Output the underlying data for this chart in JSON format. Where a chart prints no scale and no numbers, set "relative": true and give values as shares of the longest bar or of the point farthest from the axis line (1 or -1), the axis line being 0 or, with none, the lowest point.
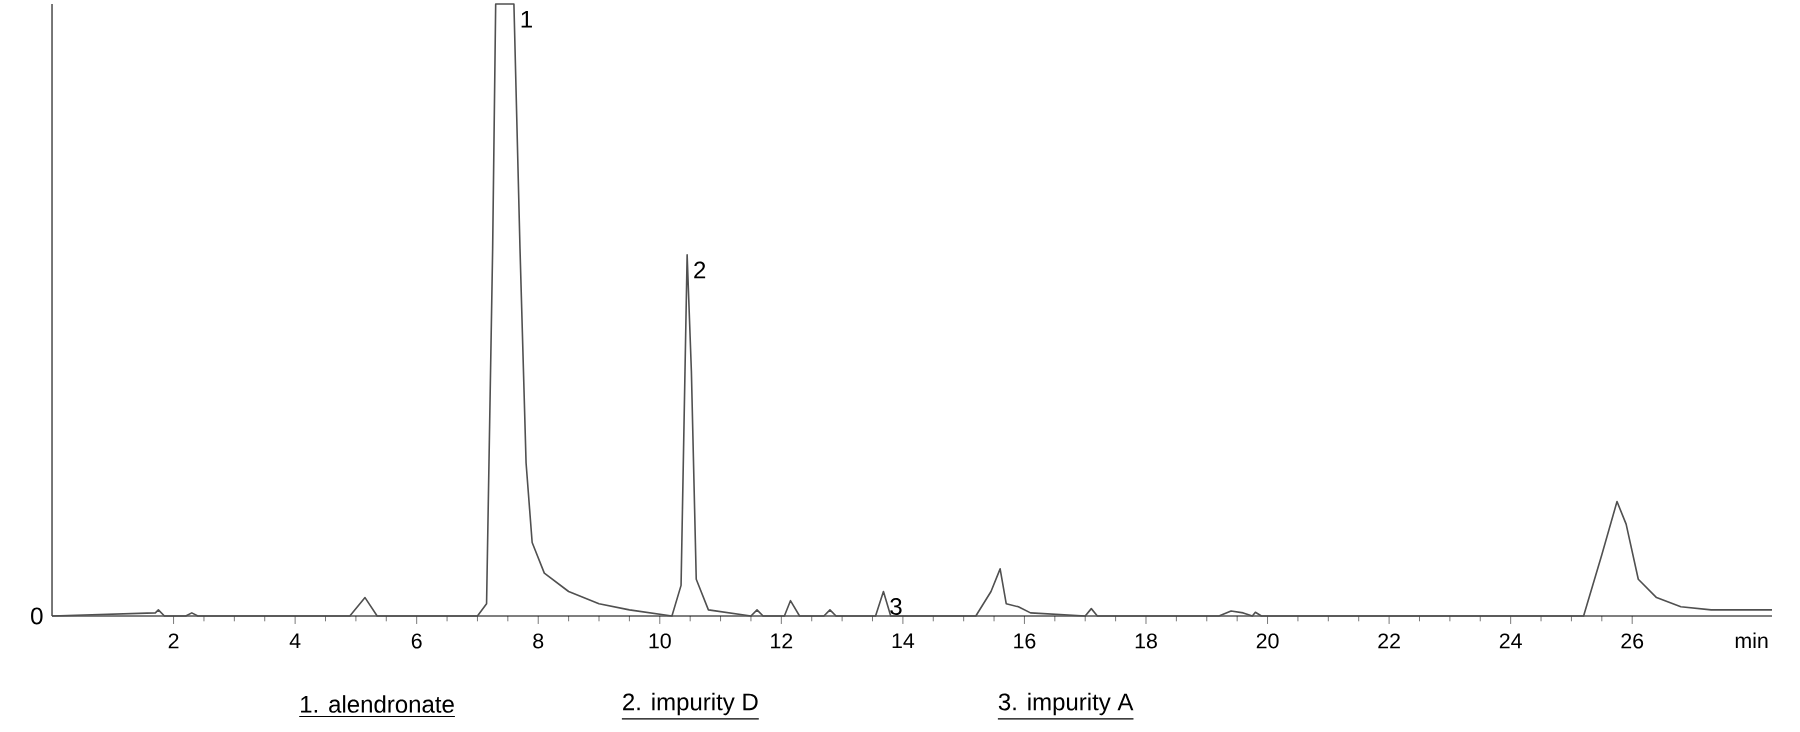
{
  "chart_data": {
    "type": "line",
    "relative": true,
    "xlabel": "min",
    "xlim": [
      0,
      28.3
    ],
    "xticks": [
      2,
      4,
      6,
      8,
      10,
      12,
      14,
      16,
      18,
      20,
      22,
      24,
      26
    ],
    "x": [
      0,
      1.7,
      1.75,
      1.85,
      2.2,
      2.3,
      2.4,
      4.9,
      5.15,
      5.35,
      7.0,
      7.15,
      7.25,
      7.3,
      7.6,
      7.7,
      7.8,
      7.9,
      8.1,
      8.5,
      9.0,
      9.5,
      10.2,
      10.35,
      10.45,
      10.52,
      10.6,
      10.8,
      11.5,
      11.6,
      11.7,
      12.05,
      12.15,
      12.3,
      12.7,
      12.8,
      12.9,
      13.55,
      13.68,
      13.8,
      15.2,
      15.45,
      15.6,
      15.7,
      15.9,
      16.1,
      17.0,
      17.1,
      17.2,
      19.2,
      19.4,
      19.6,
      19.75,
      19.8,
      19.9,
      25.2,
      25.5,
      25.75,
      25.9,
      26.1,
      26.4,
      26.8,
      27.3,
      28.3
    ],
    "series": [
      {
        "color": "#505050",
        "values": [
          0,
          0.005,
          0.01,
          0,
          0,
          0.005,
          0,
          0,
          0.03,
          0,
          0,
          0.02,
          0.6,
          1,
          1,
          0.6,
          0.25,
          0.12,
          0.07,
          0.04,
          0.02,
          0.01,
          0,
          0.05,
          0.59,
          0.4,
          0.06,
          0.01,
          0,
          0.01,
          0,
          0,
          0.025,
          0,
          0,
          0.01,
          0,
          0,
          0.04,
          0,
          0,
          0.04,
          0.077,
          0.02,
          0.015,
          0.005,
          0,
          0.012,
          0,
          0,
          0.008,
          0.005,
          0,
          0.006,
          0,
          0,
          0.1,
          0.187,
          0.15,
          0.06,
          0.03,
          0.015,
          0.01,
          0.01
        ]
      }
    ],
    "annotations": [
      "0",
      {
        "text": "1",
        "x": 7.6,
        "y": 1
      },
      {
        "text": "2",
        "x": 10.45,
        "y": 0.59
      },
      {
        "text": "3",
        "x": 13.68,
        "y": 0.04
      },
      "1. alendronate",
      "2. impurity D",
      "3. impurity A"
    ]
  }
}
